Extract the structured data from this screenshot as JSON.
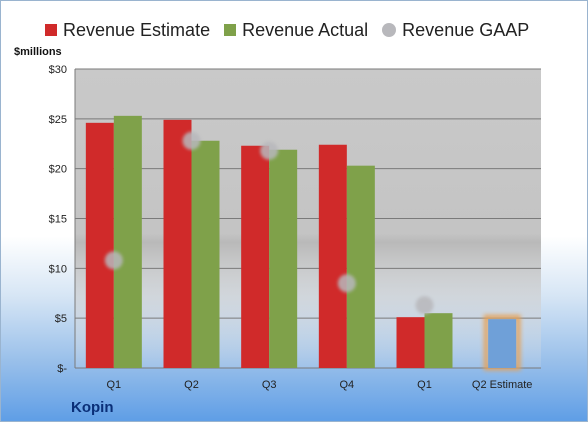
{
  "legend": [
    {
      "label": "Revenue Estimate",
      "color": "#d02a2a",
      "marker": "square"
    },
    {
      "label": "Revenue Actual",
      "color": "#7fa14a",
      "marker": "square"
    },
    {
      "label": "Revenue GAAP",
      "color": "#b8b8bc",
      "marker": "circle"
    }
  ],
  "units_label": "$millions",
  "company": "Kopin",
  "chart_data": {
    "type": "bar",
    "categories": [
      "Q1",
      "Q2",
      "Q3",
      "Q4",
      "Q1",
      "Q2 Estimate"
    ],
    "ytick_labels": [
      "$-",
      "$5",
      "$10",
      "$15",
      "$20",
      "$25",
      "$30"
    ],
    "ylim": [
      0,
      30
    ],
    "grid": true,
    "legend_position": "top",
    "series": [
      {
        "name": "Revenue Estimate",
        "color": "#d02a2a",
        "values": [
          24.6,
          24.9,
          22.3,
          22.4,
          5.1,
          null
        ]
      },
      {
        "name": "Revenue Actual",
        "color": "#7fa14a",
        "values": [
          25.3,
          22.8,
          21.9,
          20.3,
          5.5,
          null
        ]
      },
      {
        "name": "Revenue GAAP",
        "color": "#b8b8bc",
        "type": "scatter",
        "values": [
          10.8,
          22.8,
          21.8,
          8.5,
          6.3,
          null
        ]
      },
      {
        "name": "Q2 Estimate",
        "color": "#6fa0d8",
        "outline": "#e5a35a",
        "values": [
          null,
          null,
          null,
          null,
          null,
          4.9
        ]
      }
    ]
  }
}
